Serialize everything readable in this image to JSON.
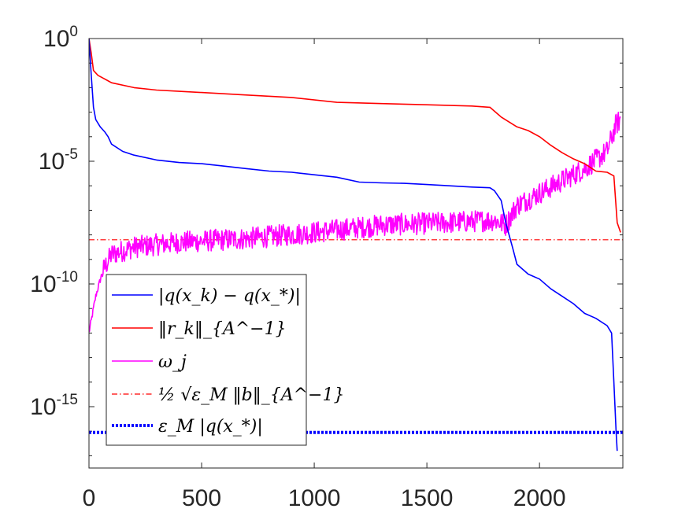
{
  "chart_data": {
    "type": "line",
    "title": "",
    "xlabel": "",
    "ylabel": "",
    "yscale": "log",
    "xlim": [
      0,
      2370
    ],
    "ylim_exponents": [
      -17.5,
      0
    ],
    "x_ticks": [
      0,
      500,
      1000,
      1500,
      2000
    ],
    "x_tick_labels": [
      "0",
      "500",
      "1000",
      "1500",
      "2000"
    ],
    "y_ticks": [
      {
        "base": "10",
        "exp": "0",
        "value": 1
      },
      {
        "base": "10",
        "exp": "-5",
        "value": 1e-05
      },
      {
        "base": "10",
        "exp": "-10",
        "value": 1e-10
      },
      {
        "base": "10",
        "exp": "-15",
        "value": 1e-15
      }
    ],
    "legend_position": "bottom-left",
    "series": [
      {
        "name": "|q(x_k) - q(x_*)|",
        "legend_label": "|q(x_k) − q(x_*)|",
        "color": "#0000ff",
        "style": "solid",
        "log10_points": [
          [
            0,
            0
          ],
          [
            10,
            -1.5
          ],
          [
            20,
            -2.8
          ],
          [
            30,
            -3.3
          ],
          [
            50,
            -3.6
          ],
          [
            70,
            -3.8
          ],
          [
            85,
            -4.0
          ],
          [
            100,
            -4.3
          ],
          [
            150,
            -4.6
          ],
          [
            200,
            -4.75
          ],
          [
            300,
            -4.95
          ],
          [
            400,
            -5.05
          ],
          [
            500,
            -5.1
          ],
          [
            600,
            -5.2
          ],
          [
            700,
            -5.3
          ],
          [
            800,
            -5.4
          ],
          [
            900,
            -5.45
          ],
          [
            1000,
            -5.55
          ],
          [
            1100,
            -5.65
          ],
          [
            1200,
            -5.85
          ],
          [
            1300,
            -5.88
          ],
          [
            1400,
            -5.9
          ],
          [
            1500,
            -5.95
          ],
          [
            1600,
            -6.0
          ],
          [
            1700,
            -6.05
          ],
          [
            1780,
            -6.08
          ],
          [
            1800,
            -6.2
          ],
          [
            1830,
            -6.6
          ],
          [
            1850,
            -7.5
          ],
          [
            1880,
            -8.5
          ],
          [
            1900,
            -9.2
          ],
          [
            1950,
            -9.6
          ],
          [
            2000,
            -9.8
          ],
          [
            2050,
            -10.2
          ],
          [
            2100,
            -10.5
          ],
          [
            2150,
            -10.8
          ],
          [
            2200,
            -11.2
          ],
          [
            2250,
            -11.4
          ],
          [
            2300,
            -11.7
          ],
          [
            2320,
            -12.0
          ],
          [
            2330,
            -14.0
          ],
          [
            2340,
            -16.0
          ],
          [
            2345,
            -16.8
          ]
        ]
      },
      {
        "name": "||r_k||_{A^-1}",
        "legend_label": "‖r_k‖_{A^−1}",
        "color": "#ff0000",
        "style": "solid",
        "log10_points": [
          [
            0,
            0
          ],
          [
            10,
            -0.6
          ],
          [
            20,
            -1.3
          ],
          [
            40,
            -1.5
          ],
          [
            60,
            -1.6
          ],
          [
            80,
            -1.7
          ],
          [
            100,
            -1.8
          ],
          [
            200,
            -2.0
          ],
          [
            300,
            -2.1
          ],
          [
            400,
            -2.15
          ],
          [
            500,
            -2.2
          ],
          [
            700,
            -2.3
          ],
          [
            900,
            -2.4
          ],
          [
            1100,
            -2.6
          ],
          [
            1300,
            -2.65
          ],
          [
            1500,
            -2.7
          ],
          [
            1700,
            -2.75
          ],
          [
            1780,
            -2.8
          ],
          [
            1830,
            -3.2
          ],
          [
            1900,
            -3.6
          ],
          [
            1950,
            -3.75
          ],
          [
            2000,
            -4.0
          ],
          [
            2050,
            -4.35
          ],
          [
            2100,
            -4.65
          ],
          [
            2150,
            -4.9
          ],
          [
            2200,
            -5.1
          ],
          [
            2250,
            -5.4
          ],
          [
            2300,
            -5.45
          ],
          [
            2330,
            -5.6
          ],
          [
            2345,
            -7.5
          ],
          [
            2360,
            -7.9
          ]
        ]
      },
      {
        "name": "omega_j",
        "legend_label": "ω_j",
        "color": "#ff00ff",
        "style": "solid",
        "noise_amplitude": 0.45,
        "log10_points": [
          [
            0,
            -12
          ],
          [
            30,
            -10.5
          ],
          [
            60,
            -9.5
          ],
          [
            100,
            -8.8
          ],
          [
            200,
            -8.5
          ],
          [
            400,
            -8.3
          ],
          [
            700,
            -8.15
          ],
          [
            1000,
            -7.9
          ],
          [
            1300,
            -7.6
          ],
          [
            1600,
            -7.5
          ],
          [
            1800,
            -7.4
          ],
          [
            1850,
            -7.6
          ],
          [
            1900,
            -6.8
          ],
          [
            2000,
            -6.3
          ],
          [
            2100,
            -5.8
          ],
          [
            2200,
            -5.3
          ],
          [
            2300,
            -4.6
          ],
          [
            2340,
            -3.5
          ],
          [
            2360,
            -3.3
          ]
        ]
      },
      {
        "name": "1/2 sqrt(eps_M) ||b||_{A^-1}",
        "legend_label": "½ √ε_M ‖b‖_{A^−1}",
        "color": "#ff0000",
        "style": "dash-dot",
        "log10_points": [
          [
            0,
            -8.2
          ],
          [
            2370,
            -8.2
          ]
        ]
      },
      {
        "name": "eps_M |q(x_*)|",
        "legend_label": "ε_M |q(x_*)|",
        "color": "#0000ff",
        "style": "dotted-thick",
        "log10_points": [
          [
            0,
            -16.05
          ],
          [
            2370,
            -16.05
          ]
        ]
      }
    ]
  }
}
